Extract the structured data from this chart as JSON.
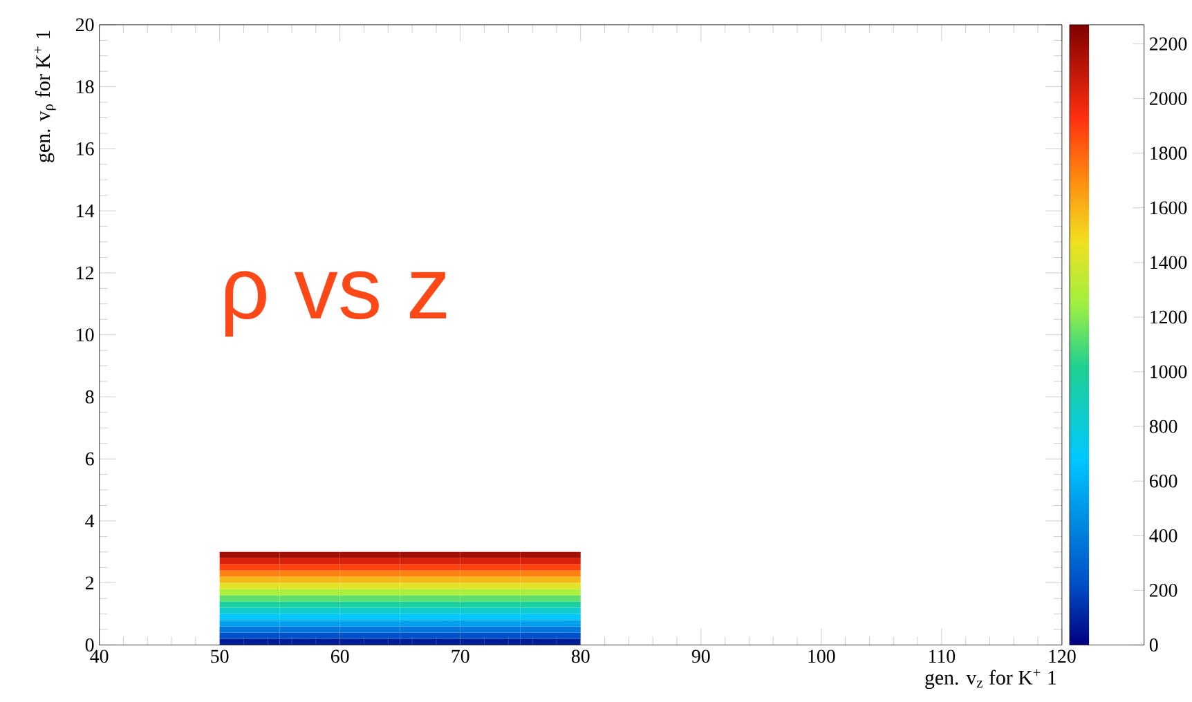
{
  "chart_data": {
    "type": "heatmap",
    "xlabel": "gen. v$_{z}$ for K$^{+}$ 1",
    "ylabel": "gen. v$_{ρ}$ for K$^{+}$ 1",
    "annotations": [
      "ρ vs z"
    ],
    "x": [
      52.5,
      57.5,
      62.5,
      67.5,
      72.5,
      77.5
    ],
    "y": [
      2.9,
      2.7,
      2.5,
      2.3,
      2.1,
      1.9,
      1.7,
      1.5,
      1.3,
      1.1,
      0.9,
      0.7,
      0.5,
      0.3,
      0.1
    ],
    "cells": [
      [
        2180,
        2180,
        2180,
        2180,
        2180,
        2180
      ],
      [
        2030,
        2030,
        2030,
        2030,
        2030,
        2030
      ],
      [
        1880,
        1880,
        1880,
        1880,
        1880,
        1880
      ],
      [
        1730,
        1730,
        1730,
        1730,
        1730,
        1730
      ],
      [
        1580,
        1580,
        1580,
        1580,
        1580,
        1580
      ],
      [
        1430,
        1430,
        1430,
        1430,
        1430,
        1430
      ],
      [
        1280,
        1280,
        1280,
        1280,
        1280,
        1280
      ],
      [
        1130,
        1130,
        1130,
        1130,
        1130,
        1130
      ],
      [
        980,
        980,
        980,
        980,
        980,
        980
      ],
      [
        830,
        830,
        830,
        830,
        830,
        830
      ],
      [
        680,
        680,
        680,
        680,
        680,
        680
      ],
      [
        530,
        530,
        530,
        530,
        530,
        530
      ],
      [
        380,
        380,
        380,
        380,
        380,
        380
      ],
      [
        230,
        230,
        230,
        230,
        230,
        230
      ],
      [
        80,
        80,
        80,
        80,
        80,
        80
      ]
    ],
    "xlim": [
      40,
      120
    ],
    "xticks": [
      40,
      50,
      60,
      70,
      80,
      90,
      100,
      110,
      120
    ],
    "ylim": [
      0,
      20
    ],
    "yticks": [
      0,
      2,
      4,
      6,
      8,
      10,
      12,
      14,
      16,
      18,
      20
    ],
    "clim": [
      0,
      2270
    ],
    "cticks": [
      0,
      200,
      400,
      600,
      800,
      1000,
      1200,
      1400,
      1600,
      1800,
      2000,
      2200
    ]
  }
}
